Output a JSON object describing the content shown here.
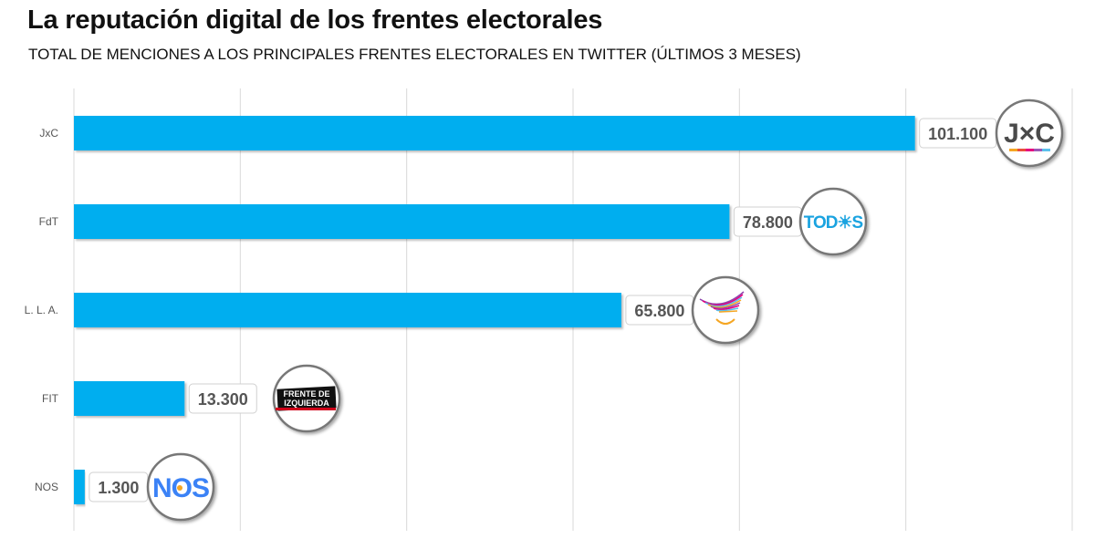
{
  "chart_data": {
    "type": "bar",
    "orientation": "horizontal",
    "title": "La reputación digital de los frentes electorales",
    "subtitle": "TOTAL DE MENCIONES A LOS PRINCIPALES FRENTES ELECTORALES EN TWITTER (ÚLTIMOS 3 MESES)",
    "categories": [
      "JxC",
      "FdT",
      "L. L. A.",
      "FIT",
      "NOS"
    ],
    "values": [
      101100,
      78800,
      65800,
      13300,
      1300
    ],
    "data_labels": [
      "101.100",
      "78.800",
      "65.800",
      "13.300",
      "1.300"
    ],
    "xlim": [
      0,
      120000
    ],
    "x_gridlines": [
      0,
      20000,
      40000,
      60000,
      80000,
      100000,
      120000
    ],
    "x_tick_labels_shown": false,
    "grid": true,
    "bar_color": "#00AEEF",
    "logos": [
      "JxC",
      "TODOS",
      "eagle",
      "FRENTE DE IZQUIERDA",
      "NOS"
    ]
  }
}
